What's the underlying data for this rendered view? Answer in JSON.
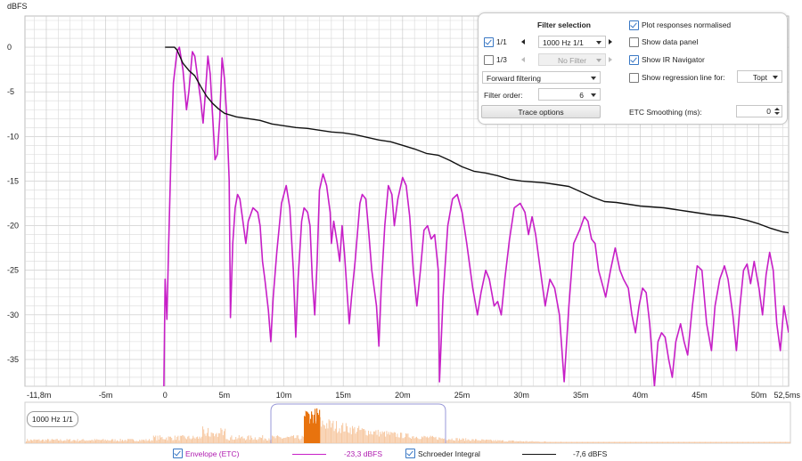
{
  "axis": {
    "y_unit": "dBFS",
    "y_ticks": [
      "0",
      "-5",
      "-10",
      "-15",
      "-20",
      "-25",
      "-30",
      "-35"
    ],
    "x_ticks": [
      "-11,8m",
      "-5m",
      "0",
      "5m",
      "10m",
      "15m",
      "20m",
      "25m",
      "30m",
      "35m",
      "40m",
      "45m",
      "50m",
      "52,5ms"
    ]
  },
  "panel": {
    "filter_selection_label": "Filter selection",
    "octave_1_1": {
      "label": "1/1",
      "checked": true,
      "value": "1000 Hz 1/1"
    },
    "octave_1_3": {
      "label": "1/3",
      "checked": false,
      "value": "No Filter"
    },
    "filtering_mode": "Forward filtering",
    "filter_order_label": "Filter order:",
    "filter_order_value": "6",
    "trace_options_label": "Trace options",
    "plot_normalised": {
      "label": "Plot responses normalised",
      "checked": true
    },
    "show_data_panel": {
      "label": "Show data panel",
      "checked": false
    },
    "show_ir_navigator": {
      "label": "Show IR Navigator",
      "checked": true
    },
    "show_regression": {
      "label": "Show regression line for:",
      "checked": false,
      "value": "Topt"
    },
    "etc_smoothing_label": "ETC Smoothing (ms):",
    "etc_smoothing_value": "0"
  },
  "navigator": {
    "label": "1000 Hz 1/1"
  },
  "legend": {
    "envelope": {
      "label": "Envelope (ETC)",
      "checked": true,
      "value": "-23,3 dBFS"
    },
    "schroeder": {
      "label": "Schroeder Integral",
      "checked": true,
      "value": "-7,6 dBFS"
    }
  },
  "colors": {
    "envelope": "#c71fc7",
    "schroeder": "#111111",
    "navigator_fill": "#f7c9a3",
    "navigator_selection": "#e8730e",
    "grid": "#d9d9d9",
    "grid_major": "#c4c4c4"
  },
  "chart_data": {
    "type": "line",
    "ylabel": "dBFS",
    "xlim_ms": [
      -11.8,
      52.5
    ],
    "ylim": [
      -38,
      3.5
    ],
    "series": [
      {
        "name": "Envelope (ETC)",
        "points": [
          [
            -0.1,
            -38
          ],
          [
            0,
            -26
          ],
          [
            0.15,
            -30.5
          ],
          [
            0.3,
            -22
          ],
          [
            0.5,
            -12
          ],
          [
            0.7,
            -4
          ],
          [
            1.0,
            -0.5
          ],
          [
            1.2,
            0
          ],
          [
            1.5,
            -2.5
          ],
          [
            1.8,
            -7
          ],
          [
            2.0,
            -5
          ],
          [
            2.3,
            -0.5
          ],
          [
            2.5,
            -1
          ],
          [
            2.8,
            -4
          ],
          [
            3.0,
            -6
          ],
          [
            3.2,
            -8.5
          ],
          [
            3.4,
            -5
          ],
          [
            3.6,
            -1
          ],
          [
            3.8,
            -3
          ],
          [
            4.1,
            -10
          ],
          [
            4.2,
            -12.6
          ],
          [
            4.4,
            -12
          ],
          [
            4.6,
            -8
          ],
          [
            4.8,
            -1.2
          ],
          [
            5.0,
            -3.5
          ],
          [
            5.2,
            -8
          ],
          [
            5.4,
            -15
          ],
          [
            5.5,
            -30.3
          ],
          [
            5.7,
            -22
          ],
          [
            5.9,
            -18
          ],
          [
            6.1,
            -16.5
          ],
          [
            6.3,
            -17
          ],
          [
            6.5,
            -19
          ],
          [
            6.8,
            -22
          ],
          [
            7.0,
            -19.5
          ],
          [
            7.4,
            -18
          ],
          [
            7.8,
            -18.5
          ],
          [
            8.0,
            -20
          ],
          [
            8.2,
            -24
          ],
          [
            8.4,
            -26
          ],
          [
            8.7,
            -29.5
          ],
          [
            8.9,
            -33
          ],
          [
            9.1,
            -28
          ],
          [
            9.4,
            -23
          ],
          [
            9.8,
            -17.5
          ],
          [
            10.2,
            -15.5
          ],
          [
            10.5,
            -18
          ],
          [
            10.8,
            -25
          ],
          [
            11.0,
            -32.5
          ],
          [
            11.2,
            -26
          ],
          [
            11.5,
            -19.5
          ],
          [
            11.7,
            -18
          ],
          [
            12.0,
            -18.5
          ],
          [
            12.2,
            -20
          ],
          [
            12.4,
            -26
          ],
          [
            12.6,
            -30
          ],
          [
            12.8,
            -24
          ],
          [
            13.0,
            -16
          ],
          [
            13.3,
            -14.2
          ],
          [
            13.6,
            -15.5
          ],
          [
            13.9,
            -18.5
          ],
          [
            14.0,
            -22
          ],
          [
            14.2,
            -19.5
          ],
          [
            14.5,
            -22
          ],
          [
            14.7,
            -24
          ],
          [
            14.9,
            -20
          ],
          [
            15.1,
            -23
          ],
          [
            15.3,
            -27
          ],
          [
            15.5,
            -31
          ],
          [
            15.7,
            -28
          ],
          [
            16.0,
            -24
          ],
          [
            16.4,
            -17.5
          ],
          [
            16.6,
            -16.5
          ],
          [
            16.9,
            -17
          ],
          [
            17.1,
            -20
          ],
          [
            17.4,
            -25
          ],
          [
            17.8,
            -29
          ],
          [
            18.0,
            -33.5
          ],
          [
            18.2,
            -27
          ],
          [
            18.5,
            -20
          ],
          [
            18.8,
            -15.5
          ],
          [
            19.1,
            -16.5
          ],
          [
            19.3,
            -20
          ],
          [
            19.6,
            -17
          ],
          [
            20.0,
            -14.6
          ],
          [
            20.3,
            -15.5
          ],
          [
            20.6,
            -19
          ],
          [
            20.9,
            -25
          ],
          [
            21.2,
            -29
          ],
          [
            21.5,
            -25
          ],
          [
            21.8,
            -20.5
          ],
          [
            22.1,
            -20
          ],
          [
            22.4,
            -21.5
          ],
          [
            22.7,
            -21
          ],
          [
            23.0,
            -25
          ],
          [
            23.1,
            -37.5
          ],
          [
            23.4,
            -28
          ],
          [
            23.8,
            -20
          ],
          [
            24.2,
            -17
          ],
          [
            24.6,
            -16.5
          ],
          [
            25.0,
            -18.5
          ],
          [
            25.4,
            -22
          ],
          [
            25.9,
            -27
          ],
          [
            26.3,
            -30
          ],
          [
            26.6,
            -27.5
          ],
          [
            27.0,
            -25
          ],
          [
            27.3,
            -26
          ],
          [
            27.7,
            -29
          ],
          [
            28.0,
            -28.5
          ],
          [
            28.3,
            -30
          ],
          [
            28.6,
            -26
          ],
          [
            29.0,
            -21.5
          ],
          [
            29.4,
            -18
          ],
          [
            29.9,
            -17.5
          ],
          [
            30.3,
            -18.5
          ],
          [
            30.6,
            -21
          ],
          [
            30.9,
            -19
          ],
          [
            31.2,
            -21
          ],
          [
            31.6,
            -25
          ],
          [
            32.0,
            -29
          ],
          [
            32.4,
            -26
          ],
          [
            32.8,
            -27
          ],
          [
            33.2,
            -30
          ],
          [
            33.6,
            -37.5
          ],
          [
            34.0,
            -29
          ],
          [
            34.4,
            -22
          ],
          [
            34.9,
            -20.5
          ],
          [
            35.3,
            -19
          ],
          [
            35.6,
            -19.5
          ],
          [
            35.9,
            -21.5
          ],
          [
            36.2,
            -22
          ],
          [
            36.5,
            -25
          ],
          [
            36.9,
            -27
          ],
          [
            37.1,
            -28
          ],
          [
            37.5,
            -25
          ],
          [
            37.9,
            -22.5
          ],
          [
            38.3,
            -25
          ],
          [
            38.6,
            -26
          ],
          [
            39.0,
            -27
          ],
          [
            39.3,
            -30
          ],
          [
            39.6,
            -32
          ],
          [
            39.9,
            -29
          ],
          [
            40.2,
            -27
          ],
          [
            40.5,
            -27.5
          ],
          [
            40.8,
            -31
          ],
          [
            41.2,
            -38
          ],
          [
            41.5,
            -33
          ],
          [
            41.8,
            -32
          ],
          [
            42.1,
            -32.5
          ],
          [
            42.4,
            -35
          ],
          [
            42.7,
            -37
          ],
          [
            43.0,
            -33
          ],
          [
            43.4,
            -31
          ],
          [
            43.7,
            -33
          ],
          [
            44.0,
            -34.5
          ],
          [
            44.4,
            -29
          ],
          [
            44.8,
            -24.5
          ],
          [
            45.2,
            -25
          ],
          [
            45.6,
            -31
          ],
          [
            46.0,
            -34
          ],
          [
            46.3,
            -29
          ],
          [
            46.7,
            -26
          ],
          [
            47.1,
            -24.5
          ],
          [
            47.4,
            -26
          ],
          [
            47.8,
            -30
          ],
          [
            48.1,
            -34
          ],
          [
            48.4,
            -29
          ],
          [
            48.7,
            -25
          ],
          [
            49.0,
            -24.3
          ],
          [
            49.3,
            -26.5
          ],
          [
            49.6,
            -24
          ],
          [
            50.0,
            -27
          ],
          [
            50.3,
            -30
          ],
          [
            50.6,
            -25.5
          ],
          [
            50.9,
            -23
          ],
          [
            51.2,
            -25
          ],
          [
            51.5,
            -31
          ],
          [
            51.8,
            -34
          ],
          [
            52.1,
            -29
          ],
          [
            52.3,
            -30.5
          ],
          [
            52.5,
            -32
          ]
        ]
      },
      {
        "name": "Schroeder Integral",
        "points": [
          [
            0,
            0
          ],
          [
            0.8,
            0
          ],
          [
            1.0,
            -0.3
          ],
          [
            1.5,
            -1.8
          ],
          [
            2.0,
            -2.6
          ],
          [
            2.5,
            -3.2
          ],
          [
            3.0,
            -4.4
          ],
          [
            3.5,
            -5.5
          ],
          [
            4.0,
            -6.3
          ],
          [
            4.5,
            -6.9
          ],
          [
            5.0,
            -7.4
          ],
          [
            5.5,
            -7.6
          ],
          [
            6.0,
            -7.8
          ],
          [
            7.0,
            -8.0
          ],
          [
            8.0,
            -8.2
          ],
          [
            9.0,
            -8.6
          ],
          [
            10.0,
            -8.8
          ],
          [
            11.0,
            -9.0
          ],
          [
            12.0,
            -9.1
          ],
          [
            13.0,
            -9.3
          ],
          [
            14.0,
            -9.5
          ],
          [
            15.0,
            -9.6
          ],
          [
            16.0,
            -9.8
          ],
          [
            17.0,
            -10.1
          ],
          [
            18.0,
            -10.4
          ],
          [
            19.0,
            -10.6
          ],
          [
            20.0,
            -11.0
          ],
          [
            21.0,
            -11.4
          ],
          [
            22.0,
            -11.9
          ],
          [
            23.0,
            -12.1
          ],
          [
            24.0,
            -12.7
          ],
          [
            25.0,
            -13.4
          ],
          [
            26.0,
            -13.9
          ],
          [
            27.0,
            -14.1
          ],
          [
            28.0,
            -14.4
          ],
          [
            29.0,
            -14.8
          ],
          [
            30.0,
            -15.0
          ],
          [
            31.0,
            -15.1
          ],
          [
            32.0,
            -15.2
          ],
          [
            33.0,
            -15.4
          ],
          [
            34.0,
            -15.6
          ],
          [
            35.0,
            -16.2
          ],
          [
            36.0,
            -16.8
          ],
          [
            37.0,
            -17.3
          ],
          [
            38.0,
            -17.4
          ],
          [
            39.0,
            -17.6
          ],
          [
            40.0,
            -17.8
          ],
          [
            41.0,
            -17.9
          ],
          [
            42.0,
            -18.0
          ],
          [
            43.0,
            -18.2
          ],
          [
            44.0,
            -18.4
          ],
          [
            45.0,
            -18.6
          ],
          [
            46.0,
            -18.8
          ],
          [
            47.0,
            -18.9
          ],
          [
            48.0,
            -19.1
          ],
          [
            49.0,
            -19.4
          ],
          [
            50.0,
            -19.8
          ],
          [
            51.0,
            -20.3
          ],
          [
            52.0,
            -20.7
          ],
          [
            52.5,
            -20.8
          ]
        ]
      }
    ]
  }
}
